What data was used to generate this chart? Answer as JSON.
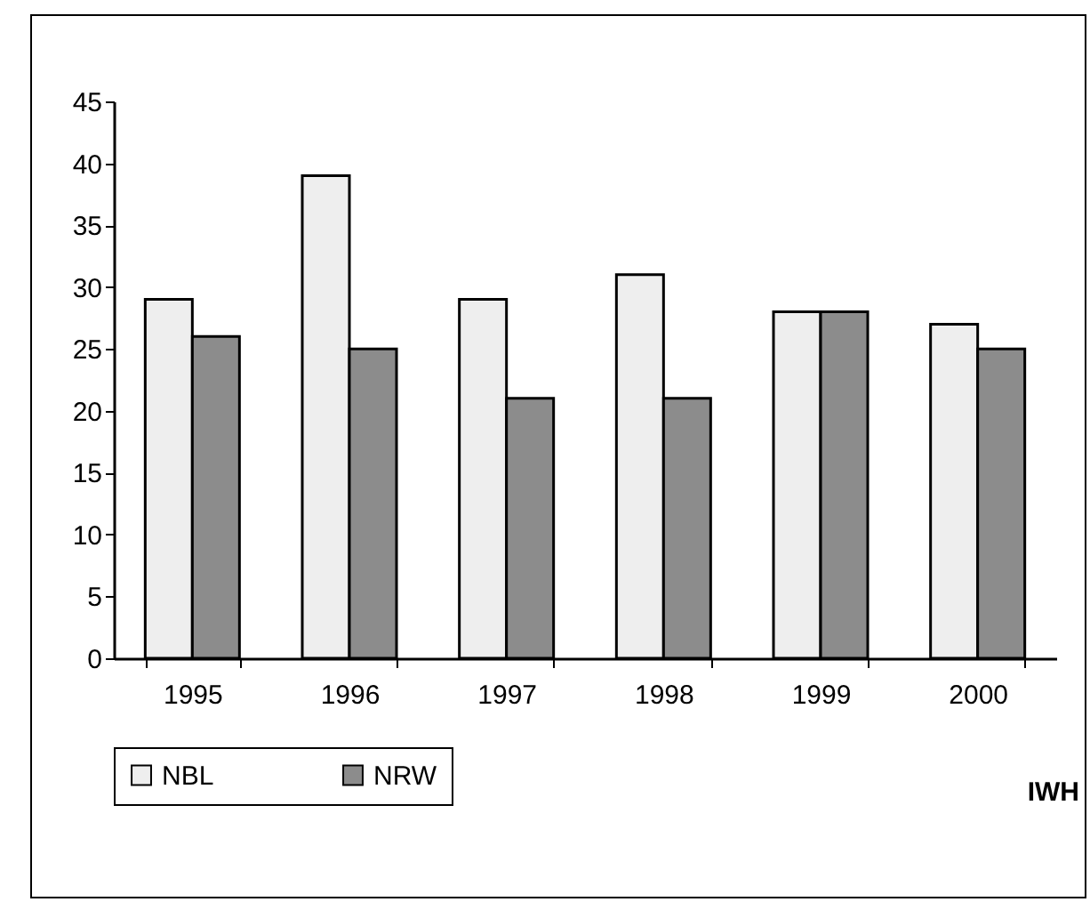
{
  "chart_data": {
    "type": "bar",
    "categories": [
      "1995",
      "1996",
      "1997",
      "1998",
      "1999",
      "2000"
    ],
    "series": [
      {
        "name": "NBL",
        "color": "#eeeeee",
        "values": [
          29,
          39,
          29,
          31,
          28,
          27
        ]
      },
      {
        "name": "NRW",
        "color": "#8c8c8c",
        "values": [
          26,
          25,
          21,
          21,
          28,
          25
        ]
      }
    ],
    "ylim": [
      0,
      45
    ],
    "yticks": [
      0,
      5,
      10,
      15,
      20,
      25,
      30,
      35,
      40,
      45
    ],
    "legend": "bottom",
    "annotations": [
      "IWH"
    ]
  }
}
